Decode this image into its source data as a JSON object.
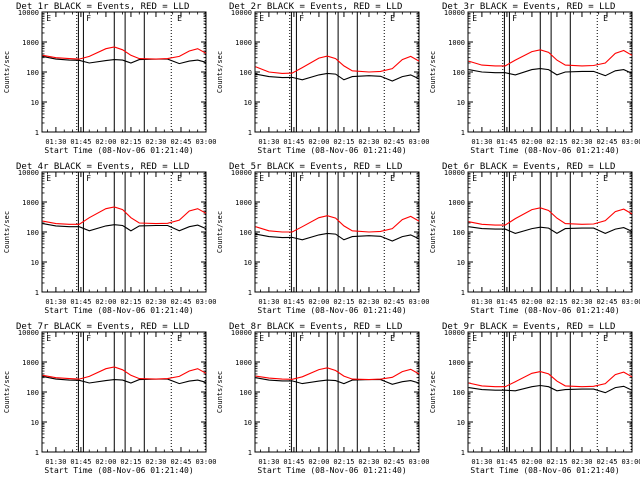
{
  "figure": {
    "ylabel": "Counts/sec",
    "xlabel": "Start Time (08-Nov-06 01:21:40)",
    "xticks": [
      "01:30",
      "01:45",
      "02:00",
      "02:15",
      "02:30",
      "02:45",
      "03:00"
    ],
    "yticks": [
      "1",
      "10",
      "100",
      "1000",
      "10000"
    ],
    "flag_labels": [
      "E",
      "F",
      "E"
    ],
    "colors": {
      "events": "#000000",
      "lld": "#ff0000"
    }
  },
  "chart_data": [
    {
      "type": "line",
      "title": "Det 1r BLACK = Events, RED = LLD",
      "xlabel": "Start Time (08-Nov-06 01:21:40)",
      "ylabel": "Counts/sec",
      "yscale": "log",
      "ylim": [
        1,
        10000
      ],
      "xlim": [
        "01:21:40",
        "03:00"
      ],
      "x": [
        "01:22",
        "01:30",
        "01:38",
        "01:44",
        "01:50",
        "02:00",
        "02:05",
        "02:10",
        "02:15",
        "02:20",
        "02:30",
        "02:37",
        "02:44",
        "02:50",
        "02:55",
        "03:00"
      ],
      "series": [
        {
          "name": "Events",
          "values": [
            330,
            270,
            250,
            245,
            200,
            240,
            260,
            250,
            200,
            260,
            270,
            270,
            190,
            230,
            250,
            210
          ]
        },
        {
          "name": "LLD",
          "values": [
            360,
            300,
            280,
            270,
            330,
            600,
            680,
            550,
            360,
            280,
            270,
            280,
            330,
            500,
            600,
            420
          ]
        }
      ]
    },
    {
      "type": "line",
      "title": "Det 2r BLACK = Events, RED = LLD",
      "xlabel": "Start Time (08-Nov-06 01:21:40)",
      "ylabel": "Counts/sec",
      "yscale": "log",
      "ylim": [
        1,
        10000
      ],
      "xlim": [
        "01:21:40",
        "03:00"
      ],
      "x": [
        "01:22",
        "01:30",
        "01:38",
        "01:44",
        "01:50",
        "02:00",
        "02:05",
        "02:10",
        "02:15",
        "02:20",
        "02:30",
        "02:37",
        "02:44",
        "02:50",
        "02:55",
        "03:00"
      ],
      "series": [
        {
          "name": "Events",
          "values": [
            85,
            70,
            65,
            66,
            55,
            80,
            90,
            85,
            55,
            70,
            75,
            72,
            50,
            70,
            80,
            60
          ]
        },
        {
          "name": "LLD",
          "values": [
            150,
            100,
            90,
            92,
            140,
            290,
            340,
            280,
            160,
            110,
            100,
            105,
            130,
            260,
            330,
            230
          ]
        }
      ]
    },
    {
      "type": "line",
      "title": "Det 3r BLACK = Events, RED = LLD",
      "xlabel": "Start Time (08-Nov-06 01:21:40)",
      "ylabel": "Counts/sec",
      "yscale": "log",
      "ylim": [
        1,
        10000
      ],
      "xlim": [
        "01:21:40",
        "03:00"
      ],
      "x": [
        "01:22",
        "01:30",
        "01:38",
        "01:44",
        "01:50",
        "02:00",
        "02:05",
        "02:10",
        "02:15",
        "02:20",
        "02:30",
        "02:37",
        "02:44",
        "02:50",
        "02:55",
        "03:00"
      ],
      "series": [
        {
          "name": "Events",
          "values": [
            120,
            100,
            95,
            95,
            80,
            120,
            130,
            120,
            80,
            100,
            105,
            105,
            75,
            110,
            120,
            90
          ]
        },
        {
          "name": "LLD",
          "values": [
            230,
            170,
            160,
            160,
            250,
            480,
            550,
            450,
            250,
            170,
            160,
            165,
            200,
            420,
            520,
            360
          ]
        }
      ]
    },
    {
      "type": "line",
      "title": "Det 4r BLACK = Events, RED = LLD",
      "xlabel": "Start Time (08-Nov-06 01:21:40)",
      "ylabel": "Counts/sec",
      "yscale": "log",
      "ylim": [
        1,
        10000
      ],
      "xlim": [
        "01:21:40",
        "03:00"
      ],
      "x": [
        "01:22",
        "01:30",
        "01:38",
        "01:44",
        "01:50",
        "02:00",
        "02:05",
        "02:10",
        "02:15",
        "02:20",
        "02:30",
        "02:37",
        "02:44",
        "02:50",
        "02:55",
        "03:00"
      ],
      "series": [
        {
          "name": "Events",
          "values": [
            190,
            160,
            150,
            150,
            110,
            160,
            175,
            165,
            110,
            160,
            165,
            165,
            110,
            150,
            170,
            130
          ]
        },
        {
          "name": "LLD",
          "values": [
            230,
            190,
            180,
            180,
            300,
            600,
            680,
            560,
            300,
            200,
            190,
            195,
            250,
            500,
            600,
            420
          ]
        }
      ]
    },
    {
      "type": "line",
      "title": "Det 5r BLACK = Events, RED = LLD",
      "xlabel": "Start Time (08-Nov-06 01:21:40)",
      "ylabel": "Counts/sec",
      "yscale": "log",
      "ylim": [
        1,
        10000
      ],
      "xlim": [
        "01:21:40",
        "03:00"
      ],
      "x": [
        "01:22",
        "01:30",
        "01:38",
        "01:44",
        "01:50",
        "02:00",
        "02:05",
        "02:10",
        "02:15",
        "02:20",
        "02:30",
        "02:37",
        "02:44",
        "02:50",
        "02:55",
        "03:00"
      ],
      "series": [
        {
          "name": "Events",
          "values": [
            85,
            70,
            65,
            66,
            55,
            80,
            90,
            85,
            55,
            70,
            75,
            72,
            50,
            70,
            80,
            60
          ]
        },
        {
          "name": "LLD",
          "values": [
            150,
            110,
            100,
            100,
            150,
            300,
            350,
            290,
            160,
            110,
            100,
            105,
            130,
            260,
            330,
            230
          ]
        }
      ]
    },
    {
      "type": "line",
      "title": "Det 6r BLACK = Events, RED = LLD",
      "xlabel": "Start Time (08-Nov-06 01:21:40)",
      "ylabel": "Counts/sec",
      "yscale": "log",
      "ylim": [
        1,
        10000
      ],
      "xlim": [
        "01:21:40",
        "03:00"
      ],
      "x": [
        "01:22",
        "01:30",
        "01:38",
        "01:44",
        "01:50",
        "02:00",
        "02:05",
        "02:10",
        "02:15",
        "02:20",
        "02:30",
        "02:37",
        "02:44",
        "02:50",
        "02:55",
        "03:00"
      ],
      "series": [
        {
          "name": "Events",
          "values": [
            150,
            130,
            125,
            125,
            90,
            130,
            145,
            135,
            90,
            130,
            135,
            135,
            90,
            125,
            140,
            105
          ]
        },
        {
          "name": "LLD",
          "values": [
            220,
            180,
            170,
            170,
            280,
            560,
            640,
            520,
            290,
            190,
            180,
            185,
            240,
            480,
            580,
            400
          ]
        }
      ]
    },
    {
      "type": "line",
      "title": "Det 7r BLACK = Events, RED = LLD",
      "xlabel": "Start Time (08-Nov-06 01:21:40)",
      "ylabel": "Counts/sec",
      "yscale": "log",
      "ylim": [
        1,
        10000
      ],
      "xlim": [
        "01:21:40",
        "03:00"
      ],
      "x": [
        "01:22",
        "01:30",
        "01:38",
        "01:44",
        "01:50",
        "02:00",
        "02:05",
        "02:10",
        "02:15",
        "02:20",
        "02:30",
        "02:37",
        "02:44",
        "02:50",
        "02:55",
        "03:00"
      ],
      "series": [
        {
          "name": "Events",
          "values": [
            330,
            270,
            250,
            245,
            200,
            240,
            260,
            250,
            200,
            260,
            270,
            270,
            190,
            230,
            250,
            210
          ]
        },
        {
          "name": "LLD",
          "values": [
            360,
            300,
            280,
            270,
            330,
            600,
            680,
            550,
            360,
            280,
            270,
            280,
            330,
            500,
            600,
            420
          ]
        }
      ]
    },
    {
      "type": "line",
      "title": "Det 8r BLACK = Events, RED = LLD",
      "xlabel": "Start Time (08-Nov-06 01:21:40)",
      "ylabel": "Counts/sec",
      "yscale": "log",
      "ylim": [
        1,
        10000
      ],
      "xlim": [
        "01:21:40",
        "03:00"
      ],
      "x": [
        "01:22",
        "01:30",
        "01:38",
        "01:44",
        "01:50",
        "02:00",
        "02:05",
        "02:10",
        "02:15",
        "02:20",
        "02:30",
        "02:37",
        "02:44",
        "02:50",
        "02:55",
        "03:00"
      ],
      "series": [
        {
          "name": "Events",
          "values": [
            300,
            250,
            235,
            235,
            190,
            230,
            250,
            240,
            190,
            250,
            260,
            260,
            180,
            220,
            240,
            200
          ]
        },
        {
          "name": "LLD",
          "values": [
            340,
            290,
            270,
            265,
            320,
            560,
            640,
            520,
            340,
            270,
            260,
            270,
            310,
            480,
            570,
            400
          ]
        }
      ]
    },
    {
      "type": "line",
      "title": "Det 9r BLACK = Events, RED = LLD",
      "xlabel": "Start Time (08-Nov-06 01:21:40)",
      "ylabel": "Counts/sec",
      "yscale": "log",
      "ylim": [
        1,
        10000
      ],
      "xlim": [
        "01:21:40",
        "03:00"
      ],
      "x": [
        "01:22",
        "01:30",
        "01:38",
        "01:44",
        "01:50",
        "02:00",
        "02:05",
        "02:10",
        "02:15",
        "02:20",
        "02:30",
        "02:37",
        "02:44",
        "02:50",
        "02:55",
        "03:00"
      ],
      "series": [
        {
          "name": "Events",
          "values": [
            140,
            120,
            115,
            115,
            110,
            150,
            165,
            150,
            110,
            120,
            125,
            125,
            95,
            140,
            155,
            115
          ]
        },
        {
          "name": "LLD",
          "values": [
            200,
            160,
            150,
            150,
            220,
            420,
            480,
            400,
            230,
            160,
            150,
            155,
            190,
            380,
            460,
            320
          ]
        }
      ]
    }
  ]
}
